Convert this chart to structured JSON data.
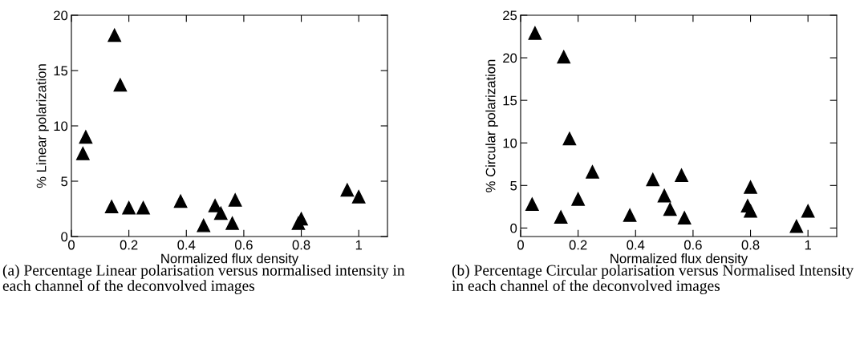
{
  "chart_data": [
    {
      "type": "scatter",
      "xlabel": "Normalized flux density",
      "ylabel": "% Linear polarization",
      "marker": "triangle",
      "grid": false,
      "legend": false,
      "annotations": [
        "(a) Percentage Linear polarisation versus normalised intensity in each channel of the deconvolved images"
      ],
      "xlim": [
        0,
        1.1
      ],
      "xticks": [
        0,
        0.2,
        0.4,
        0.6,
        0.8,
        1
      ],
      "ylim": [
        0,
        20
      ],
      "yticks": [
        0,
        5,
        10,
        15,
        20
      ],
      "series": [
        {
          "color": "#000000",
          "x": [
            0.04,
            0.05,
            0.14,
            0.15,
            0.17,
            0.2,
            0.25,
            0.38,
            0.46,
            0.5,
            0.52,
            0.56,
            0.57,
            0.79,
            0.8,
            0.96,
            1.0
          ],
          "values": [
            7.5,
            9.0,
            2.7,
            18.2,
            13.7,
            2.6,
            2.6,
            3.2,
            1.0,
            2.8,
            2.1,
            1.2,
            3.3,
            1.2,
            1.6,
            4.2,
            3.6
          ]
        }
      ]
    },
    {
      "type": "scatter",
      "xlabel": "Normalized flux density",
      "ylabel": "% Circular polarization",
      "marker": "triangle",
      "grid": false,
      "legend": false,
      "annotations": [
        "(b) Percentage Circular polarisation versus Normalised Intensity in each channel of the deconvolved images"
      ],
      "xlim": [
        0,
        1.1
      ],
      "xticks": [
        0,
        0.2,
        0.4,
        0.6,
        0.8,
        1
      ],
      "ylim": [
        -1,
        25
      ],
      "yticks": [
        0,
        5,
        10,
        15,
        20,
        25
      ],
      "series": [
        {
          "color": "#000000",
          "x": [
            0.04,
            0.05,
            0.14,
            0.15,
            0.17,
            0.2,
            0.25,
            0.38,
            0.46,
            0.5,
            0.52,
            0.56,
            0.57,
            0.79,
            0.8,
            0.8,
            0.96,
            1.0
          ],
          "values": [
            2.8,
            22.9,
            1.3,
            20.1,
            10.5,
            3.4,
            6.6,
            1.5,
            5.7,
            3.8,
            2.2,
            6.2,
            1.2,
            2.6,
            2.0,
            4.8,
            0.2,
            2.0
          ]
        }
      ]
    }
  ]
}
